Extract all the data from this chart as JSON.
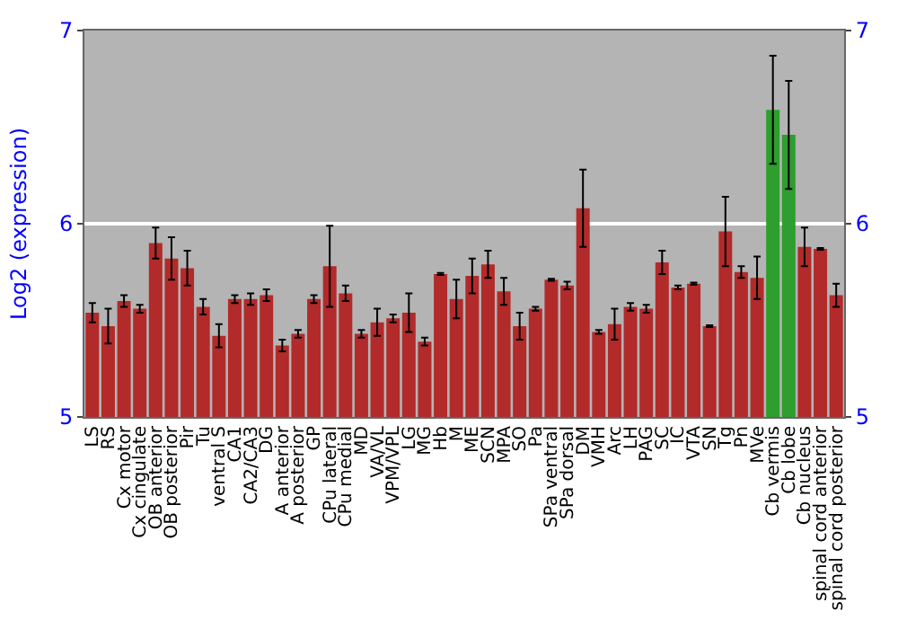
{
  "chart_data": {
    "type": "bar",
    "ylabel": "Log2 (expression)",
    "categories": [
      "LS",
      "RS",
      "Cx motor",
      "Cx cingulate",
      "OB anterior",
      "OB posterior",
      "Pir",
      "Tu",
      "ventral S",
      "CA1",
      "CA2/CA3",
      "DG",
      "A anterior",
      "A posterior",
      "GP",
      "CPu lateral",
      "CPu medial",
      "MD",
      "VA/VL",
      "VPM/VPL",
      "LG",
      "MG",
      "Hb",
      "M",
      "ME",
      "SCN",
      "MPA",
      "SO",
      "Pa",
      "SPa ventral",
      "SPa dorsal",
      "DM",
      "VMH",
      "Arc",
      "LH",
      "PAG",
      "SC",
      "IC",
      "VTA",
      "SN",
      "Tg",
      "Pn",
      "MVe",
      "Cb vermis",
      "Cb lobe",
      "Cb nucleus",
      "spinal cord anterior",
      "spinal cord posterior"
    ],
    "values": [
      5.54,
      5.47,
      5.6,
      5.56,
      5.9,
      5.82,
      5.77,
      5.57,
      5.42,
      5.61,
      5.61,
      5.63,
      5.37,
      5.43,
      5.61,
      5.78,
      5.64,
      5.43,
      5.49,
      5.51,
      5.54,
      5.39,
      5.74,
      5.61,
      5.73,
      5.79,
      5.65,
      5.47,
      5.56,
      5.71,
      5.68,
      6.08,
      5.44,
      5.48,
      5.57,
      5.56,
      5.8,
      5.67,
      5.69,
      5.47,
      5.96,
      5.75,
      5.72,
      6.59,
      6.46,
      5.88,
      5.87,
      5.63
    ],
    "errors": [
      0.05,
      0.09,
      0.03,
      0.02,
      0.08,
      0.11,
      0.09,
      0.04,
      0.06,
      0.02,
      0.03,
      0.03,
      0.03,
      0.02,
      0.02,
      0.21,
      0.04,
      0.02,
      0.07,
      0.02,
      0.1,
      0.02,
      0.005,
      0.1,
      0.09,
      0.07,
      0.07,
      0.07,
      0.01,
      0.005,
      0.02,
      0.2,
      0.01,
      0.08,
      0.02,
      0.02,
      0.06,
      0.01,
      0.005,
      0.005,
      0.18,
      0.03,
      0.11,
      0.28,
      0.28,
      0.1,
      0.005,
      0.06
    ],
    "colors": [
      "#b22a2a",
      "#b22a2a",
      "#b22a2a",
      "#b22a2a",
      "#b22a2a",
      "#b22a2a",
      "#b22a2a",
      "#b22a2a",
      "#b22a2a",
      "#b22a2a",
      "#b22a2a",
      "#b22a2a",
      "#b22a2a",
      "#b22a2a",
      "#b22a2a",
      "#b22a2a",
      "#b22a2a",
      "#b22a2a",
      "#b22a2a",
      "#b22a2a",
      "#b22a2a",
      "#b22a2a",
      "#b22a2a",
      "#b22a2a",
      "#b22a2a",
      "#b22a2a",
      "#b22a2a",
      "#b22a2a",
      "#b22a2a",
      "#b22a2a",
      "#b22a2a",
      "#b22a2a",
      "#b22a2a",
      "#b22a2a",
      "#b22a2a",
      "#b22a2a",
      "#b22a2a",
      "#b22a2a",
      "#b22a2a",
      "#b22a2a",
      "#b22a2a",
      "#b22a2a",
      "#b22a2a",
      "#2e9e2e",
      "#2e9e2e",
      "#b22a2a",
      "#b22a2a",
      "#b22a2a"
    ],
    "ylim": [
      5,
      7
    ],
    "yticks": [
      5,
      6,
      7
    ],
    "y2lim": [
      5,
      7
    ],
    "y2ticks": [
      5,
      6,
      7
    ],
    "grid": "y"
  }
}
